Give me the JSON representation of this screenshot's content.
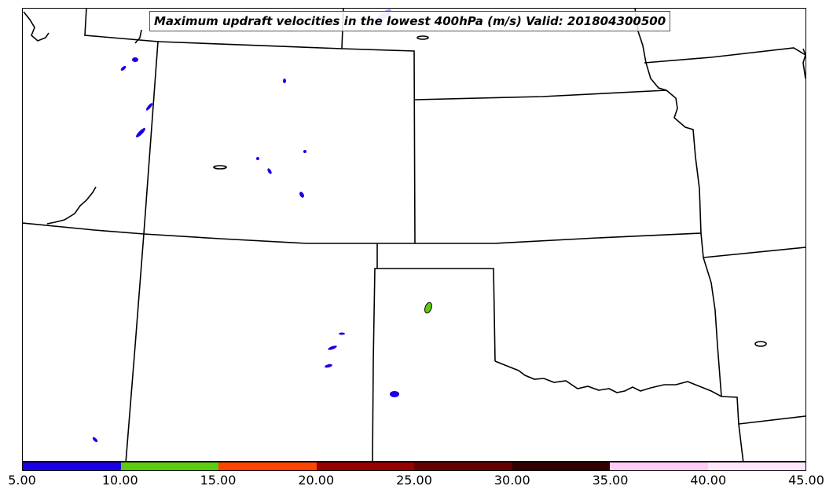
{
  "title": "Maximum updraft velocities in the lowest 400hPa (m/s) Valid: 201804300500",
  "colorbar": {
    "segments": [
      {
        "color": "#1a00e6"
      },
      {
        "color": "#5ccc0f"
      },
      {
        "color": "#ff4400"
      },
      {
        "color": "#990000"
      },
      {
        "color": "#660000"
      },
      {
        "color": "#330000"
      },
      {
        "color": "#ffccf5"
      },
      {
        "color": "#ffe6fa"
      }
    ],
    "ticks": [
      "5.00",
      "10.00",
      "15.00",
      "20.00",
      "25.00",
      "30.00",
      "35.00",
      "40.00",
      "45.00"
    ]
  },
  "map": {
    "region": "Central United States",
    "features": [
      "state-boundaries",
      "coastlines-lakes",
      "updraft-contours"
    ]
  }
}
